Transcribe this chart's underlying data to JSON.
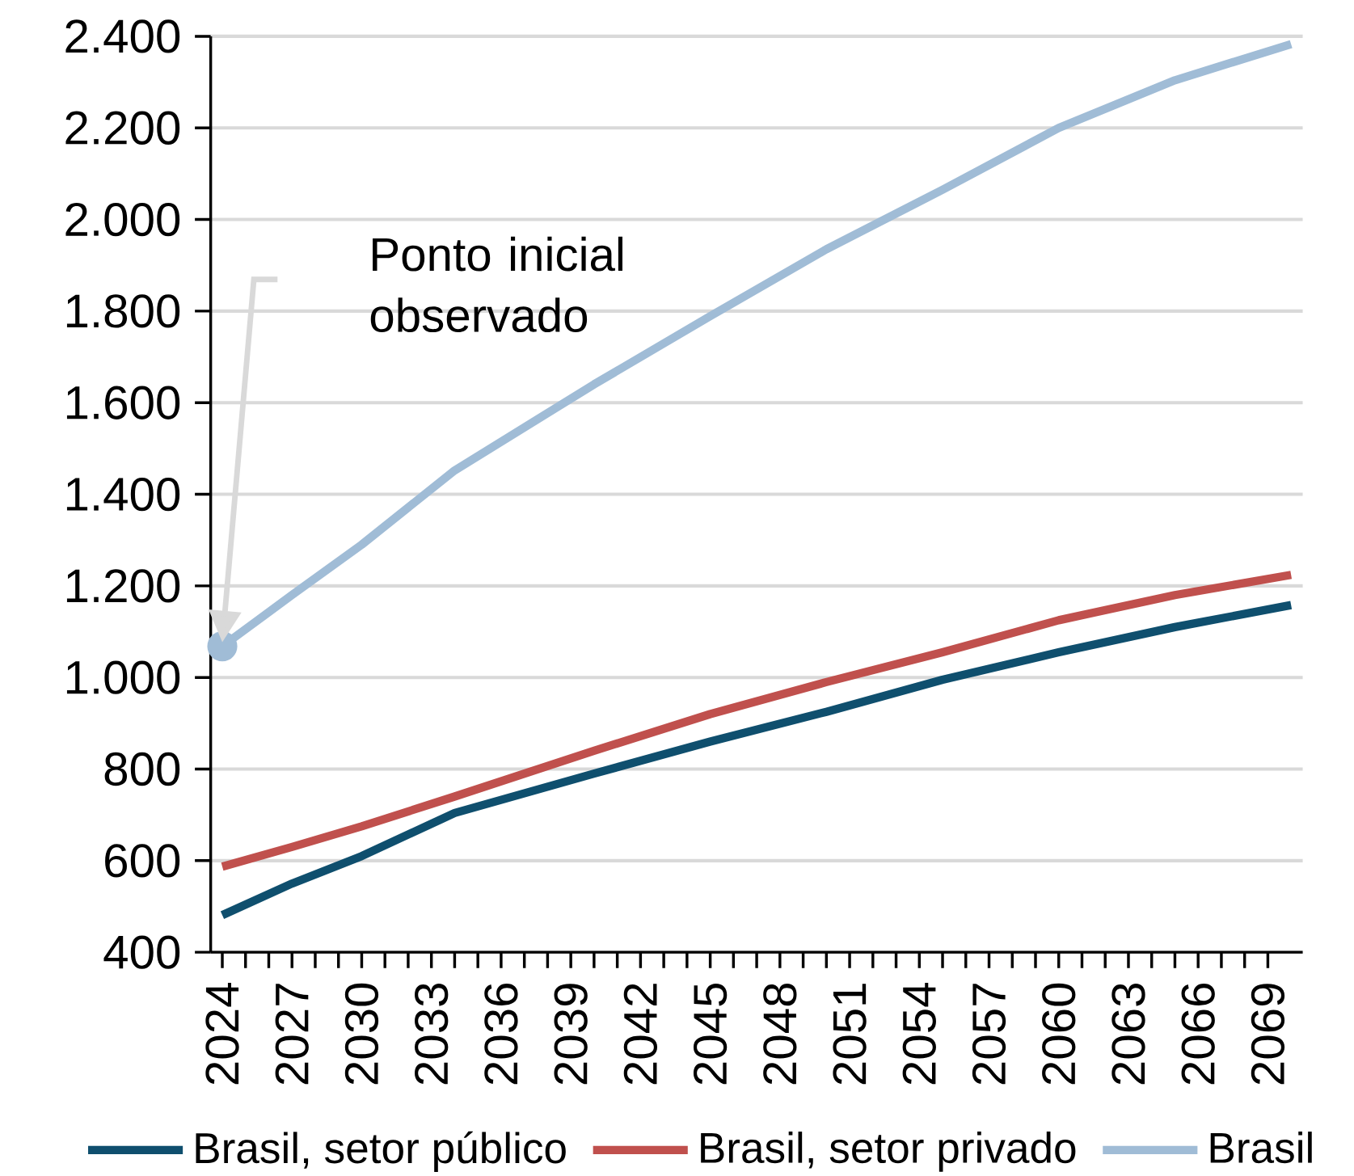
{
  "chart_data": {
    "type": "line",
    "annotations": [
      "Ponto inicial observado"
    ],
    "series": [
      {
        "name": "Brasil, setor público",
        "color": "#0f4f6e",
        "x": [
          2024,
          2027,
          2030,
          2034,
          2040,
          2045,
          2050,
          2055,
          2060,
          2065,
          2070
        ],
        "values": [
          481,
          550,
          610,
          704,
          790,
          860,
          925,
          995,
          1055,
          1110,
          1158
        ]
      },
      {
        "name": "Brasil, setor privado",
        "color": "#c0504d",
        "x": [
          2024,
          2027,
          2030,
          2034,
          2040,
          2045,
          2050,
          2055,
          2060,
          2065,
          2070
        ],
        "values": [
          587,
          630,
          675,
          740,
          840,
          920,
          990,
          1055,
          1125,
          1180,
          1224
        ]
      },
      {
        "name": "Brasil",
        "color": "#a0bcd6",
        "x": [
          2024,
          2027,
          2030,
          2034,
          2040,
          2045,
          2050,
          2055,
          2060,
          2065,
          2070
        ],
        "values": [
          1068,
          1180,
          1290,
          1452,
          1640,
          1789,
          1935,
          2065,
          2200,
          2304,
          2383
        ]
      }
    ],
    "xlim": [
      2023.5,
      2070.5
    ],
    "xticks": [
      2024,
      2027,
      2030,
      2033,
      2036,
      2039,
      2042,
      2045,
      2048,
      2051,
      2054,
      2057,
      2060,
      2063,
      2066,
      2069
    ],
    "ylim": [
      400,
      2400
    ],
    "yticks": [
      400,
      600,
      800,
      {
        "value": 1000,
        "label": "1.000"
      },
      {
        "value": 1200,
        "label": "1.200"
      },
      {
        "value": 1400,
        "label": "1.400"
      },
      {
        "value": 1600,
        "label": "1.600"
      },
      {
        "value": 1800,
        "label": "1.800"
      },
      {
        "value": 2000,
        "label": "2.000"
      },
      {
        "value": 2200,
        "label": "2.200"
      },
      {
        "value": 2400,
        "label": "2.400"
      }
    ],
    "grid": "y",
    "legend": "bottom",
    "line_style": "solid",
    "marker": "none"
  }
}
